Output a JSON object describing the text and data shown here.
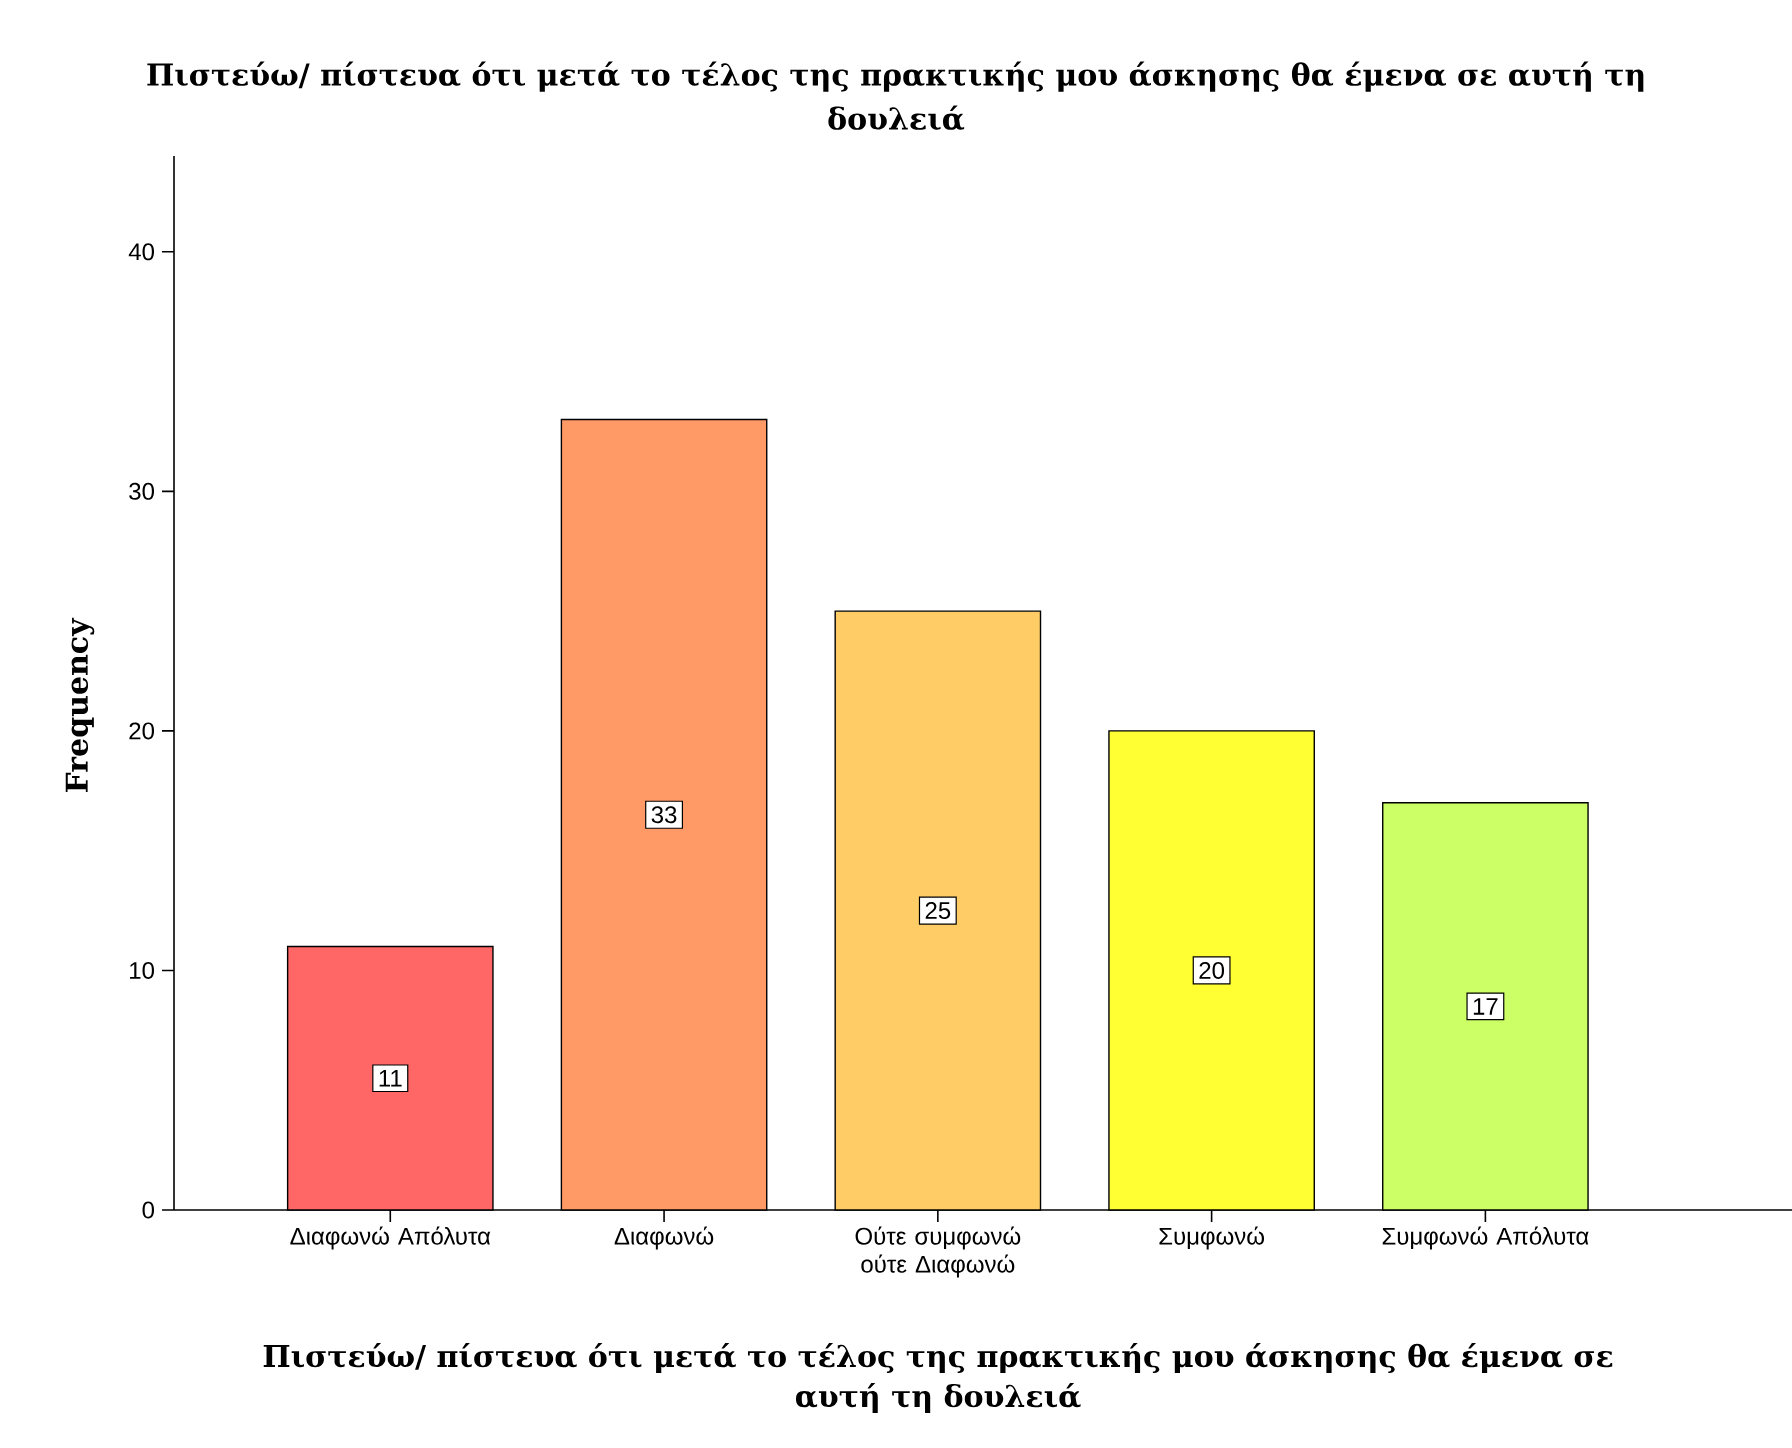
{
  "chart_data": {
    "type": "bar",
    "title": "Πιστεύω/ πίστευα ότι μετά το τέλος της πρακτικής μου άσκησης θα έμενα σε αυτή τη δουλειά",
    "xlabel": "Πιστεύω/ πίστευα ότι μετά το τέλος της πρακτικής μου άσκησης θα έμενα σε αυτή τη δουλειά",
    "ylabel": "Frequency",
    "categories": [
      "Διαφωνώ Απόλυτα",
      "Διαφωνώ",
      "Ούτε συμφωνώ ούτε Διαφωνώ",
      "Συμφωνώ",
      "Συμφωνώ Απόλυτα"
    ],
    "values": [
      11,
      33,
      25,
      20,
      17
    ],
    "colors": [
      "#ff6666",
      "#ff9966",
      "#ffcc66",
      "#ffff33",
      "#ccff66"
    ],
    "ylim": [
      0,
      44
    ],
    "yticks": [
      0,
      10,
      20,
      30,
      40
    ],
    "data_labels": true
  }
}
